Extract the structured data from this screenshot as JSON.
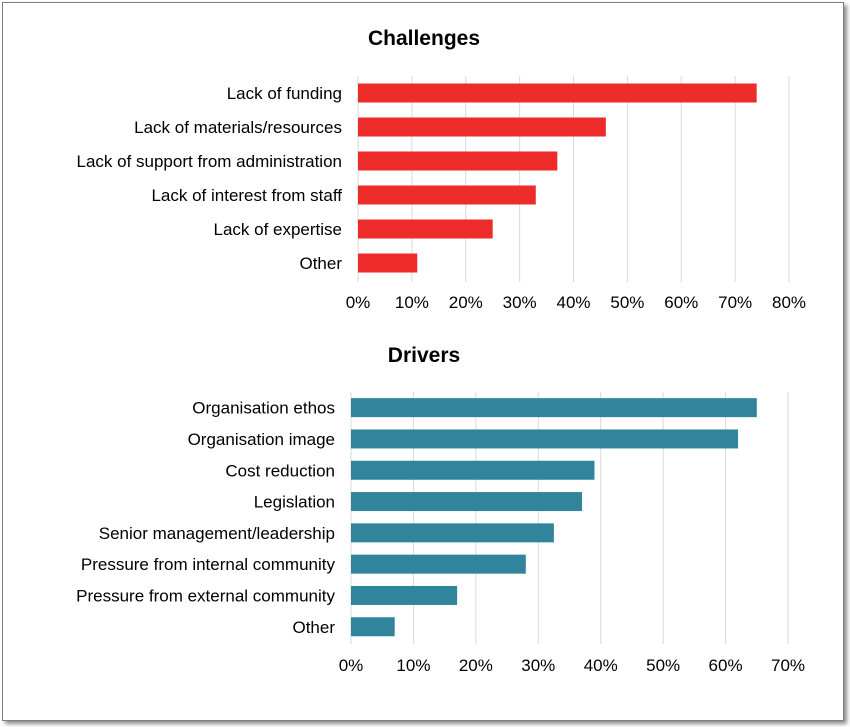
{
  "chart_data": [
    {
      "type": "bar",
      "orientation": "horizontal",
      "title": "Challenges",
      "categories": [
        "Lack of funding",
        "Lack of materials/resources",
        "Lack of support from administration",
        "Lack of interest from staff",
        "Lack of expertise",
        "Other"
      ],
      "values": [
        74,
        46,
        37,
        33,
        25,
        11
      ],
      "xlim": [
        0,
        80
      ],
      "ticks": [
        "0%",
        "10%",
        "20%",
        "30%",
        "40%",
        "50%",
        "60%",
        "70%",
        "80%"
      ],
      "color": "#ee2b2b",
      "grid": true
    },
    {
      "type": "bar",
      "orientation": "horizontal",
      "title": "Drivers",
      "categories": [
        "Organisation ethos",
        "Organisation image",
        "Cost reduction",
        "Legislation",
        "Senior management/leadership",
        "Pressure from internal community",
        "Pressure from external community",
        "Other"
      ],
      "values": [
        65,
        62,
        39,
        37,
        32.5,
        28,
        17,
        7
      ],
      "xlim": [
        0,
        70
      ],
      "ticks": [
        "0%",
        "10%",
        "20%",
        "30%",
        "40%",
        "50%",
        "60%",
        "70%"
      ],
      "color": "#31849b",
      "grid": true
    }
  ]
}
